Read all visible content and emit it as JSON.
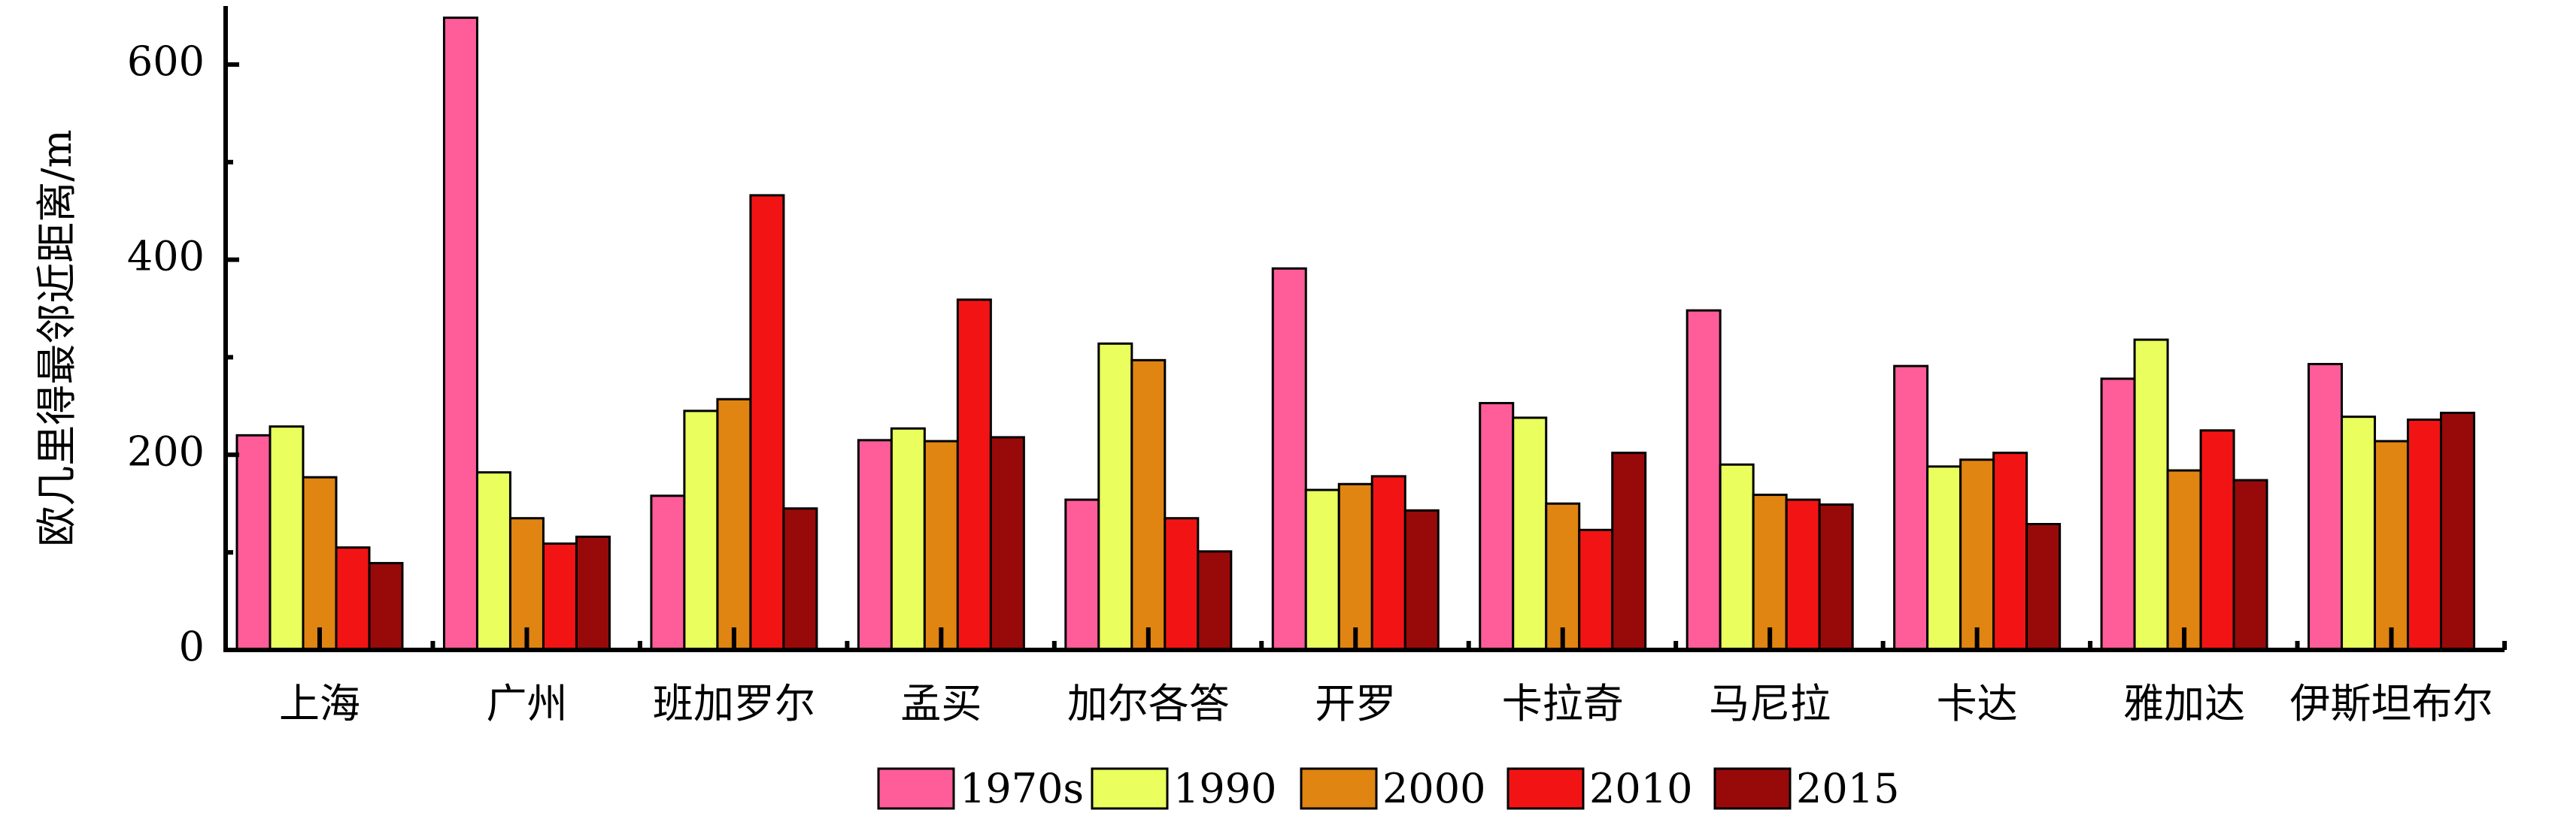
{
  "chart_data": {
    "type": "bar",
    "title": "",
    "xlabel": "",
    "ylabel": "欧几里得最邻近距离/m",
    "ylim": [
      0,
      660
    ],
    "yticks": [
      0,
      200,
      400,
      600
    ],
    "grid": false,
    "legend_position": "bottom",
    "categories": [
      "上海",
      "广州",
      "班加罗尔",
      "孟买",
      "加尔各答",
      "开罗",
      "卡拉奇",
      "马尼拉",
      "卡达",
      "雅加达",
      "伊斯坦布尔"
    ],
    "series": [
      {
        "name": "1970s",
        "color": "#ff5c9a",
        "values": [
          220,
          648,
          158,
          215,
          154,
          391,
          253,
          348,
          291,
          278,
          293
        ]
      },
      {
        "name": "1990",
        "color": "#eaff5e",
        "values": [
          229,
          182,
          245,
          227,
          314,
          164,
          238,
          190,
          188,
          318,
          239
        ]
      },
      {
        "name": "2000",
        "color": "#e08412",
        "values": [
          177,
          135,
          257,
          214,
          297,
          170,
          150,
          159,
          195,
          184,
          214
        ]
      },
      {
        "name": "2010",
        "color": "#f21414",
        "values": [
          105,
          109,
          466,
          359,
          135,
          178,
          123,
          154,
          202,
          225,
          236
        ]
      },
      {
        "name": "2015",
        "color": "#980a0a",
        "values": [
          89,
          116,
          145,
          218,
          101,
          143,
          202,
          149,
          129,
          174,
          243
        ]
      }
    ]
  }
}
